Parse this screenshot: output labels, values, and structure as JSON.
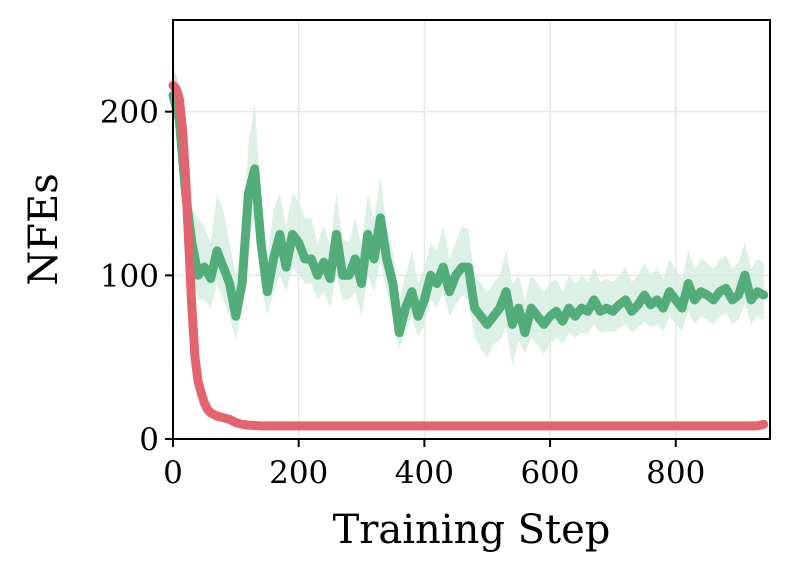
{
  "chart_data": {
    "type": "line",
    "title": "",
    "xlabel": "Training Step",
    "ylabel": "NFEs",
    "xlim": [
      0,
      950
    ],
    "ylim": [
      0,
      256
    ],
    "xticks": [
      0,
      200,
      400,
      600,
      800
    ],
    "yticks": [
      0,
      100,
      200
    ],
    "xtick_labels": [
      "0",
      "200",
      "400",
      "600",
      "800"
    ],
    "ytick_labels": [
      "0",
      "100",
      "200"
    ],
    "grid": true,
    "legend": "none",
    "series": [
      {
        "color": "#53ad7a",
        "band_color": "#d5ece0",
        "x": [
          0,
          10,
          20,
          30,
          40,
          50,
          60,
          70,
          80,
          90,
          100,
          110,
          120,
          130,
          140,
          150,
          160,
          170,
          180,
          190,
          200,
          210,
          220,
          230,
          240,
          250,
          260,
          270,
          280,
          290,
          300,
          310,
          320,
          330,
          340,
          350,
          360,
          370,
          380,
          390,
          400,
          410,
          420,
          430,
          440,
          450,
          460,
          470,
          480,
          490,
          500,
          510,
          520,
          530,
          540,
          550,
          560,
          570,
          580,
          590,
          600,
          610,
          620,
          630,
          640,
          650,
          660,
          670,
          680,
          690,
          700,
          710,
          720,
          730,
          740,
          750,
          760,
          770,
          780,
          790,
          800,
          810,
          820,
          830,
          840,
          850,
          860,
          870,
          880,
          890,
          900,
          910,
          920,
          930,
          940
        ],
        "values": [
          210,
          195,
          150,
          120,
          100,
          105,
          98,
          115,
          105,
          95,
          75,
          95,
          150,
          165,
          120,
          90,
          110,
          125,
          105,
          125,
          120,
          110,
          110,
          100,
          108,
          98,
          125,
          100,
          100,
          110,
          95,
          125,
          110,
          135,
          110,
          95,
          65,
          80,
          90,
          75,
          85,
          100,
          95,
          105,
          90,
          100,
          105,
          105,
          80,
          75,
          70,
          75,
          80,
          90,
          70,
          80,
          65,
          80,
          75,
          70,
          75,
          78,
          72,
          80,
          75,
          80,
          78,
          85,
          78,
          80,
          78,
          82,
          85,
          78,
          82,
          88,
          82,
          85,
          80,
          90,
          85,
          80,
          95,
          85,
          90,
          88,
          85,
          90,
          92,
          85,
          88,
          100,
          85,
          90,
          88
        ],
        "band_low": [
          200,
          180,
          130,
          100,
          85,
          85,
          80,
          95,
          85,
          75,
          60,
          80,
          120,
          135,
          95,
          75,
          90,
          100,
          90,
          105,
          100,
          95,
          95,
          85,
          90,
          80,
          100,
          85,
          85,
          90,
          75,
          100,
          90,
          110,
          90,
          75,
          55,
          65,
          75,
          62,
          70,
          85,
          80,
          90,
          75,
          82,
          88,
          85,
          62,
          55,
          50,
          58,
          60,
          68,
          45,
          60,
          52,
          62,
          58,
          52,
          58,
          62,
          58,
          65,
          62,
          65,
          64,
          70,
          65,
          66,
          65,
          68,
          70,
          65,
          68,
          72,
          68,
          70,
          66,
          75,
          70,
          66,
          78,
          70,
          75,
          73,
          70,
          75,
          77,
          70,
          73,
          82,
          70,
          75,
          73
        ],
        "band_high": [
          230,
          215,
          170,
          140,
          135,
          130,
          120,
          150,
          140,
          120,
          100,
          115,
          180,
          205,
          145,
          110,
          140,
          150,
          130,
          150,
          145,
          135,
          135,
          120,
          130,
          118,
          150,
          122,
          120,
          135,
          118,
          150,
          135,
          160,
          130,
          115,
          85,
          100,
          115,
          95,
          105,
          120,
          115,
          130,
          110,
          120,
          130,
          128,
          100,
          95,
          90,
          95,
          100,
          115,
          95,
          100,
          85,
          100,
          95,
          90,
          95,
          98,
          90,
          100,
          95,
          100,
          96,
          105,
          96,
          98,
          96,
          100,
          105,
          96,
          100,
          108,
          100,
          104,
          98,
          110,
          104,
          98,
          115,
          104,
          110,
          108,
          104,
          110,
          112,
          104,
          108,
          120,
          104,
          110,
          108
        ]
      },
      {
        "color": "#e1646f",
        "band_color": "#f4c8cc",
        "x": [
          0,
          5,
          10,
          15,
          20,
          25,
          30,
          35,
          40,
          45,
          50,
          55,
          60,
          70,
          80,
          90,
          100,
          110,
          120,
          140,
          160,
          200,
          300,
          400,
          500,
          600,
          700,
          800,
          900,
          930,
          940
        ],
        "values": [
          216,
          214,
          208,
          190,
          160,
          120,
          80,
          50,
          35,
          28,
          22,
          18,
          16,
          14,
          13,
          12,
          10,
          9,
          8.5,
          8,
          8,
          8,
          8,
          8,
          8,
          8,
          8,
          8,
          8,
          8,
          9
        ],
        "band_low": [
          208,
          206,
          200,
          180,
          150,
          110,
          72,
          45,
          31,
          25,
          20,
          16,
          14,
          12,
          11,
          10,
          9,
          8,
          7.5,
          7,
          7,
          7,
          7,
          7,
          7,
          7,
          7,
          7,
          7,
          7,
          8
        ],
        "band_high": [
          224,
          222,
          216,
          200,
          170,
          130,
          88,
          55,
          39,
          31,
          24,
          20,
          18,
          16,
          15,
          14,
          11,
          10,
          9.5,
          9,
          9,
          9,
          9,
          9,
          9,
          9,
          9,
          9,
          9,
          9,
          10
        ]
      }
    ]
  }
}
